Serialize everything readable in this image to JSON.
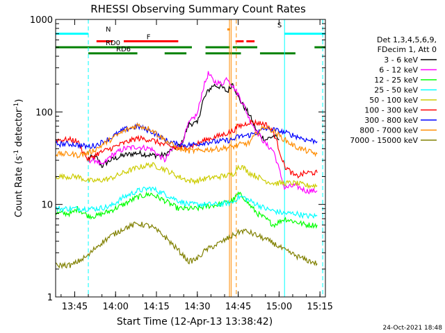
{
  "chart_data": {
    "type": "line",
    "title": "RHESSI Observing Summary Count Rates",
    "xlabel": "Start Time (12-Apr-13 13:38:42)",
    "ylabel_main": "Count Rate (s",
    "ylabel_sup": "-1",
    "ylabel_tail": " detector",
    "ylabel_sup2": "-1",
    "ylabel_end": ")",
    "yscale": "log",
    "ylim": [
      1,
      1000
    ],
    "xlim_minutes_after_1338": [
      0,
      99
    ],
    "x_ticks": [
      {
        "label": "13:45",
        "t": 7
      },
      {
        "label": "14:00",
        "t": 22
      },
      {
        "label": "14:15",
        "t": 37
      },
      {
        "label": "14:30",
        "t": 52
      },
      {
        "label": "14:45",
        "t": 67
      },
      {
        "label": "15:00",
        "t": 82
      },
      {
        "label": "15:15",
        "t": 97
      }
    ],
    "y_ticks": [
      {
        "label": "1",
        "v": 1
      },
      {
        "label": "10",
        "v": 10
      },
      {
        "label": "100",
        "v": 100
      },
      {
        "label": "1000",
        "v": 1000
      }
    ],
    "legend_header": [
      "Det 1,3,4,5,6,9,",
      "FDecim 1, Att 0"
    ],
    "legend_placement": "right",
    "series": [
      {
        "name": "3 - 6 keV",
        "color": "#000000",
        "points": [
          [
            12,
            32
          ],
          [
            15,
            32
          ],
          [
            17,
            26
          ],
          [
            20,
            30
          ],
          [
            25,
            34
          ],
          [
            30,
            36
          ],
          [
            35,
            34
          ],
          [
            40,
            34
          ],
          [
            43,
            40
          ],
          [
            46,
            44
          ],
          [
            49,
            75
          ],
          [
            52,
            75
          ],
          [
            54,
            130
          ],
          [
            56,
            170
          ],
          [
            58,
            195
          ],
          [
            61,
            185
          ],
          [
            63,
            165
          ],
          [
            65,
            205
          ],
          [
            67,
            145
          ],
          [
            69,
            115
          ],
          [
            71,
            95
          ],
          [
            74,
            60
          ],
          [
            77,
            50
          ],
          [
            80,
            55
          ],
          [
            82,
            50
          ]
        ]
      },
      {
        "name": "6 - 12 keV",
        "color": "#ff00ff",
        "points": [
          [
            12,
            30
          ],
          [
            15,
            30
          ],
          [
            17,
            26
          ],
          [
            20,
            33
          ],
          [
            25,
            40
          ],
          [
            30,
            42
          ],
          [
            35,
            40
          ],
          [
            40,
            30
          ],
          [
            43,
            40
          ],
          [
            46,
            44
          ],
          [
            49,
            76
          ],
          [
            52,
            95
          ],
          [
            54,
            175
          ],
          [
            56,
            260
          ],
          [
            58,
            215
          ],
          [
            61,
            200
          ],
          [
            63,
            235
          ],
          [
            65,
            190
          ],
          [
            67,
            155
          ],
          [
            69,
            120
          ],
          [
            71,
            85
          ],
          [
            74,
            60
          ],
          [
            77,
            45
          ],
          [
            80,
            38
          ],
          [
            84,
            15
          ],
          [
            88,
            16
          ],
          [
            92,
            14
          ],
          [
            96,
            14
          ]
        ]
      },
      {
        "name": "12 - 25 keV",
        "color": "#00ff00",
        "points": [
          [
            0,
            8.0
          ],
          [
            6,
            8.0
          ],
          [
            8,
            9
          ],
          [
            12,
            7.5
          ],
          [
            15,
            7.5
          ],
          [
            20,
            8.5
          ],
          [
            25,
            10
          ],
          [
            30,
            12
          ],
          [
            35,
            13
          ],
          [
            40,
            11
          ],
          [
            45,
            9
          ],
          [
            49,
            9
          ],
          [
            52,
            9
          ],
          [
            55,
            9.5
          ],
          [
            60,
            10
          ],
          [
            65,
            11
          ],
          [
            67,
            13
          ],
          [
            69,
            12
          ],
          [
            71,
            10
          ],
          [
            74,
            8
          ],
          [
            77,
            7
          ],
          [
            80,
            6
          ],
          [
            84,
            7
          ],
          [
            88,
            6.5
          ],
          [
            92,
            6
          ],
          [
            96,
            6
          ]
        ]
      },
      {
        "name": "25 - 50 keV",
        "color": "#00ffff",
        "points": [
          [
            0,
            9
          ],
          [
            6,
            9
          ],
          [
            8,
            9
          ],
          [
            12,
            9
          ],
          [
            15,
            9
          ],
          [
            20,
            9.5
          ],
          [
            25,
            12
          ],
          [
            30,
            14
          ],
          [
            35,
            15
          ],
          [
            40,
            13
          ],
          [
            45,
            11
          ],
          [
            49,
            10
          ],
          [
            52,
            10
          ],
          [
            55,
            10
          ],
          [
            60,
            10
          ],
          [
            65,
            10.5
          ],
          [
            67,
            12
          ],
          [
            69,
            12
          ],
          [
            71,
            11
          ],
          [
            74,
            10
          ],
          [
            77,
            9
          ],
          [
            80,
            8.5
          ],
          [
            84,
            8
          ],
          [
            88,
            8
          ],
          [
            92,
            7.5
          ],
          [
            96,
            7.5
          ]
        ]
      },
      {
        "name": "50 - 100 keV",
        "color": "#cccc00",
        "points": [
          [
            0,
            20
          ],
          [
            6,
            20
          ],
          [
            8,
            20
          ],
          [
            12,
            18
          ],
          [
            15,
            18
          ],
          [
            20,
            19
          ],
          [
            25,
            22
          ],
          [
            30,
            25
          ],
          [
            35,
            27
          ],
          [
            40,
            24
          ],
          [
            45,
            20
          ],
          [
            49,
            18
          ],
          [
            52,
            18
          ],
          [
            55,
            19
          ],
          [
            60,
            20
          ],
          [
            65,
            21
          ],
          [
            67,
            26
          ],
          [
            69,
            25
          ],
          [
            71,
            22
          ],
          [
            74,
            20
          ],
          [
            77,
            18
          ],
          [
            80,
            17
          ],
          [
            84,
            17
          ],
          [
            88,
            17
          ],
          [
            92,
            16
          ],
          [
            96,
            16
          ]
        ]
      },
      {
        "name": "100 - 300 keV",
        "color": "#ff0000",
        "points": [
          [
            0,
            50
          ],
          [
            6,
            50
          ],
          [
            8,
            48
          ],
          [
            12,
            30
          ],
          [
            15,
            35
          ],
          [
            20,
            40
          ],
          [
            25,
            46
          ],
          [
            30,
            52
          ],
          [
            35,
            50
          ],
          [
            40,
            44
          ],
          [
            45,
            40
          ],
          [
            49,
            42
          ],
          [
            52,
            45
          ],
          [
            55,
            50
          ],
          [
            60,
            55
          ],
          [
            65,
            62
          ],
          [
            67,
            70
          ],
          [
            69,
            72
          ],
          [
            71,
            78
          ],
          [
            74,
            76
          ],
          [
            77,
            74
          ],
          [
            80,
            60
          ],
          [
            84,
            26
          ],
          [
            88,
            20
          ],
          [
            92,
            22
          ],
          [
            96,
            22
          ]
        ]
      },
      {
        "name": "300 - 800 keV",
        "color": "#0000ff",
        "points": [
          [
            0,
            45
          ],
          [
            6,
            45
          ],
          [
            8,
            44
          ],
          [
            12,
            42
          ],
          [
            15,
            44
          ],
          [
            20,
            52
          ],
          [
            25,
            64
          ],
          [
            30,
            70
          ],
          [
            35,
            62
          ],
          [
            40,
            50
          ],
          [
            45,
            44
          ],
          [
            49,
            44
          ],
          [
            52,
            45
          ],
          [
            55,
            47
          ],
          [
            60,
            48
          ],
          [
            65,
            50
          ],
          [
            67,
            54
          ],
          [
            69,
            55
          ],
          [
            71,
            56
          ],
          [
            74,
            60
          ],
          [
            77,
            66
          ],
          [
            80,
            64
          ],
          [
            84,
            60
          ],
          [
            88,
            55
          ],
          [
            92,
            50
          ],
          [
            96,
            48
          ]
        ]
      },
      {
        "name": "800 - 7000 keV",
        "color": "#ff8c00",
        "points": [
          [
            0,
            35
          ],
          [
            6,
            35
          ],
          [
            8,
            34
          ],
          [
            12,
            36
          ],
          [
            15,
            40
          ],
          [
            20,
            50
          ],
          [
            25,
            62
          ],
          [
            30,
            72
          ],
          [
            35,
            65
          ],
          [
            40,
            50
          ],
          [
            45,
            40
          ],
          [
            49,
            38
          ],
          [
            52,
            38
          ],
          [
            55,
            39
          ],
          [
            60,
            40
          ],
          [
            65,
            42
          ],
          [
            67,
            44
          ],
          [
            69,
            45
          ],
          [
            71,
            46
          ],
          [
            74,
            60
          ],
          [
            77,
            70
          ],
          [
            80,
            62
          ],
          [
            84,
            50
          ],
          [
            88,
            42
          ],
          [
            92,
            38
          ],
          [
            96,
            35
          ]
        ]
      },
      {
        "name": "7000 - 15000 keV",
        "color": "#808000",
        "points": [
          [
            0,
            2.2
          ],
          [
            6,
            2.2
          ],
          [
            8,
            2.4
          ],
          [
            12,
            2.8
          ],
          [
            15,
            3.5
          ],
          [
            20,
            4.5
          ],
          [
            25,
            5.5
          ],
          [
            30,
            6.2
          ],
          [
            35,
            5.8
          ],
          [
            40,
            4.5
          ],
          [
            45,
            3.2
          ],
          [
            49,
            2.4
          ],
          [
            52,
            2.6
          ],
          [
            55,
            3.2
          ],
          [
            60,
            3.8
          ],
          [
            65,
            4.6
          ],
          [
            67,
            5.0
          ],
          [
            69,
            5.2
          ],
          [
            71,
            5.0
          ],
          [
            74,
            4.6
          ],
          [
            77,
            4.2
          ],
          [
            80,
            3.8
          ],
          [
            84,
            3.2
          ],
          [
            88,
            2.8
          ],
          [
            92,
            2.5
          ],
          [
            96,
            2.3
          ]
        ]
      }
    ],
    "status_bars": [
      {
        "label": "N",
        "color": "#00ffff",
        "segments": [
          [
            0,
            12
          ],
          [
            84,
            99
          ]
        ],
        "level": 700
      },
      {
        "label": "F",
        "color": "#ff0000",
        "segments": [
          [
            15,
            21
          ],
          [
            25,
            45
          ],
          [
            66,
            69
          ],
          [
            70,
            73
          ]
        ],
        "level": 580
      },
      {
        "label": "RD0",
        "color": "#008000",
        "segments": [
          [
            0,
            50
          ],
          [
            55,
            64
          ],
          [
            65,
            74
          ],
          [
            95,
            99
          ]
        ],
        "level": 500
      },
      {
        "label": "RD6",
        "color": "#008000",
        "segments": [
          [
            12,
            30
          ],
          [
            40,
            48
          ],
          [
            55,
            68
          ],
          [
            75,
            88
          ]
        ],
        "level": 430
      },
      {
        "label": "S",
        "color": "#ff8c00",
        "segments": [
          [
            63,
            64
          ]
        ],
        "level": 780
      }
    ],
    "vertical_markers": [
      {
        "color": "#00ffff",
        "t": 0,
        "style": "solid"
      },
      {
        "color": "#00ffff",
        "t": 12,
        "style": "dashed"
      },
      {
        "color": "#00ffff",
        "t": 84,
        "style": "solid"
      },
      {
        "color": "#00ffff",
        "t": 98,
        "style": "dashed"
      },
      {
        "color": "#ff8c00",
        "t": 63.8,
        "style": "solid"
      },
      {
        "color": "#ff8c00",
        "t": 64.4,
        "style": "solid"
      },
      {
        "color": "#ff8c00",
        "t": 66.3,
        "style": "dashed"
      }
    ],
    "grid": false
  },
  "footer": {
    "timestamp": "24-Oct-2021 18:48"
  }
}
